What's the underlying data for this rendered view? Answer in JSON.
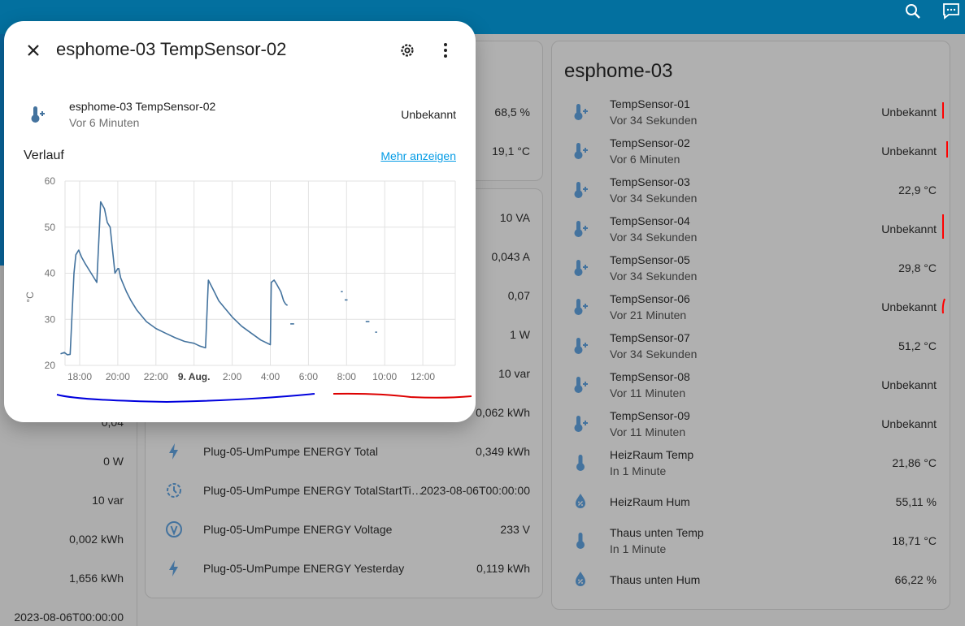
{
  "header": {
    "search_icon": "search-icon",
    "assist_icon": "assist-icon"
  },
  "dialog": {
    "title": "esphome-03 TempSensor-02",
    "entity_name": "esphome-03 TempSensor-02",
    "entity_time": "Vor 6 Minuten",
    "entity_state": "Unbekannt",
    "history_label": "Verlauf",
    "more_link": "Mehr anzeigen"
  },
  "chart_data": {
    "type": "line",
    "title": "",
    "ylabel": "°C",
    "xlabel": "",
    "ylim": [
      20,
      60
    ],
    "yticks": [
      "20",
      "30",
      "40",
      "50",
      "60"
    ],
    "xticks": [
      "18:00",
      "20:00",
      "22:00",
      "9. Aug.",
      "2:00",
      "4:00",
      "6:00",
      "8:00",
      "10:00",
      "12:00"
    ],
    "x_hours": [
      17,
      29.5
    ],
    "series": [
      {
        "x": [
          17.0,
          17.2,
          17.35,
          17.5,
          17.7,
          17.8,
          17.95,
          18.1,
          18.3,
          18.6,
          18.9,
          19.1,
          19.3,
          19.45,
          19.6,
          19.85,
          20.0,
          20.05,
          20.15,
          20.3,
          20.45,
          20.7,
          21.0,
          21.5,
          22.0,
          22.5,
          23.0,
          23.5,
          24.0,
          24.3,
          24.6,
          24.75,
          25.0,
          25.3,
          25.6,
          26.0,
          26.5,
          27.0,
          27.5,
          28.0,
          28.05,
          28.2,
          28.35,
          28.55,
          28.7,
          28.8,
          28.9
        ],
        "y": [
          22.5,
          22.8,
          22.3,
          22.4,
          40.0,
          44.0,
          45.0,
          43.5,
          42.0,
          40.0,
          38.0,
          55.5,
          54.0,
          51.0,
          50.0,
          40.0,
          41.0,
          41.0,
          39.0,
          37.5,
          36.0,
          34.0,
          32.0,
          29.5,
          28.0,
          27.0,
          26.0,
          25.2,
          24.8,
          24.2,
          23.8,
          38.5,
          36.5,
          34.0,
          32.5,
          30.5,
          28.5,
          27.0,
          25.5,
          24.5,
          38.0,
          38.5,
          37.5,
          36.0,
          34.0,
          33.3,
          33.0
        ]
      }
    ],
    "fragments": [
      {
        "x": [
          29.05,
          29.25
        ],
        "y": [
          29.0,
          29.0
        ]
      },
      {
        "x": [
          31.7,
          31.8
        ],
        "y": [
          36.0,
          36.0
        ]
      },
      {
        "x": [
          31.9,
          32.05
        ],
        "y": [
          34.2,
          34.2
        ]
      },
      {
        "x": [
          33.0,
          33.2
        ],
        "y": [
          29.5,
          29.5
        ]
      },
      {
        "x": [
          33.5,
          33.6
        ],
        "y": [
          27.2,
          27.2
        ]
      }
    ],
    "annotation_strokes": [
      {
        "color": "#0000dd"
      },
      {
        "color": "#dd0000"
      }
    ]
  },
  "left_values": [
    "0,04",
    "0 W",
    "10 var",
    "0,002 kWh",
    "1,656 kWh",
    "2023-08-06T00:00:00"
  ],
  "card_top_mid": {
    "values": [
      "68,5 %",
      "19,1 °C"
    ]
  },
  "card_mid": {
    "values": [
      "10 VA",
      "0,043 A",
      "0,07",
      "1 W",
      "10 var",
      "0,062 kWh"
    ],
    "rows": [
      {
        "name": "Plug-05-UmPumpe ENERGY Total",
        "value": "0,349 kWh",
        "icon": "flash-icon"
      },
      {
        "name": "Plug-05-UmPumpe ENERGY TotalStartTi…",
        "value": "2023-08-06T00:00:00",
        "icon": "clock-start-icon"
      },
      {
        "name": "Plug-05-UmPumpe ENERGY Voltage",
        "value": "233 V",
        "icon": "voltage-icon"
      },
      {
        "name": "Plug-05-UmPumpe ENERGY Yesterday",
        "value": "0,119 kWh",
        "icon": "flash-icon"
      }
    ]
  },
  "card_right": {
    "title": "esphome-03",
    "rows": [
      {
        "name": "TempSensor-01",
        "sub": "Vor 34 Sekunden",
        "value": "Unbekannt",
        "icon": "thermometer-plus-icon"
      },
      {
        "name": "TempSensor-02",
        "sub": "Vor 6 Minuten",
        "value": "Unbekannt",
        "icon": "thermometer-plus-icon"
      },
      {
        "name": "TempSensor-03",
        "sub": "Vor 34 Sekunden",
        "value": "22,9 °C",
        "icon": "thermometer-plus-icon"
      },
      {
        "name": "TempSensor-04",
        "sub": "Vor 34 Sekunden",
        "value": "Unbekannt",
        "icon": "thermometer-plus-icon"
      },
      {
        "name": "TempSensor-05",
        "sub": "Vor 34 Sekunden",
        "value": "29,8 °C",
        "icon": "thermometer-plus-icon"
      },
      {
        "name": "TempSensor-06",
        "sub": "Vor 21 Minuten",
        "value": "Unbekannt",
        "icon": "thermometer-plus-icon"
      },
      {
        "name": "TempSensor-07",
        "sub": "Vor 34 Sekunden",
        "value": "51,2 °C",
        "icon": "thermometer-plus-icon"
      },
      {
        "name": "TempSensor-08",
        "sub": "Vor 11 Minuten",
        "value": "Unbekannt",
        "icon": "thermometer-plus-icon"
      },
      {
        "name": "TempSensor-09",
        "sub": "Vor 11 Minuten",
        "value": "Unbekannt",
        "icon": "thermometer-plus-icon"
      },
      {
        "name": "HeizRaum Temp",
        "sub": "In 1 Minute",
        "value": "21,86 °C",
        "icon": "thermometer-icon"
      },
      {
        "name": "HeizRaum Hum",
        "sub": "",
        "value": "55,11 %",
        "icon": "water-percent-icon"
      },
      {
        "name": "Thaus unten Temp",
        "sub": "In 1 Minute",
        "value": "18,71 °C",
        "icon": "thermometer-icon"
      },
      {
        "name": "Thaus unten Hum",
        "sub": "",
        "value": "66,22 %",
        "icon": "water-percent-icon"
      }
    ]
  },
  "colors": {
    "header": "#03709f",
    "line": "#44739e",
    "link": "#039be5",
    "icon": "#44739e",
    "red_mark": "#ff0000"
  }
}
